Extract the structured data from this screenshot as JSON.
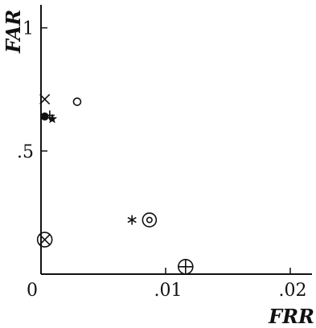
{
  "chart_data": {
    "type": "scatter",
    "title": "",
    "xlabel": "FRR",
    "ylabel": "FAR",
    "xlim": [
      0,
      0.022
    ],
    "ylim": [
      0,
      1.1
    ],
    "x_ticks": [
      {
        "value": 0,
        "label": "0"
      },
      {
        "value": 0.01,
        "label": ".01"
      },
      {
        "value": 0.02,
        "label": ".02"
      }
    ],
    "y_ticks": [
      {
        "value": 0.5,
        "label": ".5"
      },
      {
        "value": 1,
        "label": "1"
      }
    ],
    "grid": false,
    "legend": "none",
    "points": [
      {
        "marker": "x-cross",
        "x": 0.0003,
        "y": 0.71
      },
      {
        "marker": "filled-circle",
        "x": 0.0003,
        "y": 0.64
      },
      {
        "marker": "plus",
        "x": 0.0007,
        "y": 0.645
      },
      {
        "marker": "star",
        "x": 0.0009,
        "y": 0.63
      },
      {
        "marker": "open-circle",
        "x": 0.0029,
        "y": 0.7
      },
      {
        "marker": "asterisk",
        "x": 0.0073,
        "y": 0.22
      },
      {
        "marker": "circled-dot",
        "x": 0.0087,
        "y": 0.22
      },
      {
        "marker": "circled-x",
        "x": 0.0003,
        "y": 0.14
      },
      {
        "marker": "circled-plus",
        "x": 0.0116,
        "y": 0.03
      }
    ]
  }
}
